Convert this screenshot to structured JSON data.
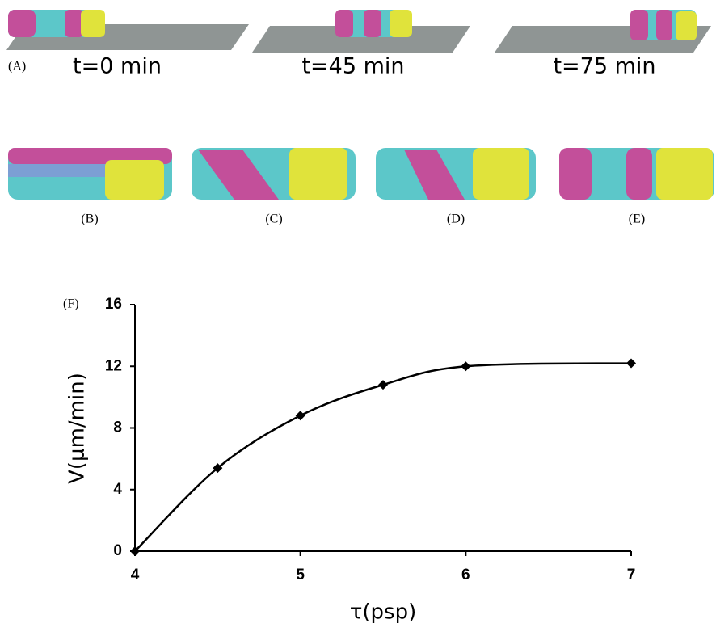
{
  "panel_a": {
    "label": "(A)",
    "times": [
      "t=0 min",
      "t=45 min",
      "t=75 min"
    ]
  },
  "panels_b_to_e": [
    "(B)",
    "(C)",
    "(D)",
    "(E)"
  ],
  "chart_data": {
    "type": "line",
    "panel_label": "(F)",
    "x_label": "τ(psp)",
    "y_label": "V(μm/min)",
    "x": [
      4,
      4.5,
      5,
      5.5,
      6,
      7
    ],
    "series": [
      {
        "color": "#000000",
        "values": [
          0,
          5.4,
          8.8,
          10.8,
          12.0,
          12.2
        ]
      }
    ],
    "xlim": [
      4,
      7
    ],
    "xticks": [
      4,
      5,
      6,
      7
    ],
    "ylim": [
      0,
      16
    ],
    "yticks": [
      0,
      4,
      8,
      12,
      16
    ],
    "grid": false
  }
}
